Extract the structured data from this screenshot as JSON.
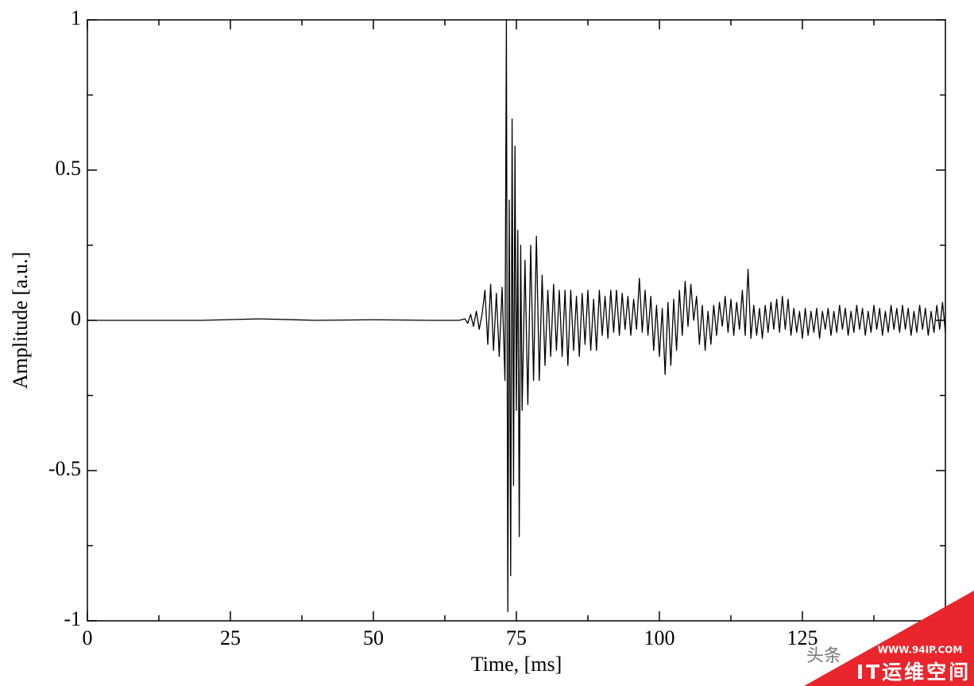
{
  "chart_data": {
    "type": "line",
    "xlabel": "Time, [ms]",
    "ylabel": "Amplitude [a.u.]",
    "color": "#000000",
    "xlim": [
      0,
      150
    ],
    "ylim": [
      -1,
      1
    ],
    "xticks": [
      0,
      25,
      50,
      75,
      100,
      125
    ],
    "yticks": [
      -1,
      -0.5,
      0,
      0.5,
      1
    ],
    "xminorticks": [
      12.5,
      37.5,
      62.5,
      87.5,
      112.5,
      137.5
    ],
    "yminorticks": [
      -0.75,
      -0.25,
      0.25,
      0.75
    ],
    "x": [
      0,
      10,
      20,
      30,
      40,
      50,
      60,
      65,
      66,
      66.5,
      67,
      67.5,
      68,
      68.5,
      69,
      69.5,
      70,
      70.5,
      71,
      71.5,
      72,
      72.5,
      73,
      73.25,
      73.5,
      73.75,
      74,
      74.25,
      74.5,
      74.75,
      75,
      75.25,
      75.5,
      75.75,
      76,
      76.5,
      77,
      77.5,
      78,
      78.5,
      79,
      79.5,
      80,
      80.5,
      81,
      81.5,
      82,
      82.5,
      83,
      83.5,
      84,
      84.5,
      85,
      85.5,
      86,
      86.5,
      87,
      87.5,
      88,
      88.5,
      89,
      89.5,
      90,
      90.5,
      91,
      91.5,
      92,
      92.5,
      93,
      93.5,
      94,
      94.5,
      95,
      95.5,
      96,
      96.5,
      97,
      97.5,
      98,
      98.5,
      99,
      99.5,
      100,
      100.5,
      101,
      101.5,
      102,
      102.5,
      103,
      103.5,
      104,
      104.5,
      105,
      105.5,
      106,
      106.5,
      107,
      107.5,
      108,
      108.5,
      109,
      109.5,
      110,
      110.5,
      111,
      111.5,
      112,
      112.5,
      113,
      113.5,
      114,
      114.5,
      115,
      115.5,
      116,
      116.5,
      117,
      117.5,
      118,
      118.5,
      119,
      119.5,
      120,
      120.5,
      121,
      121.5,
      122,
      122.5,
      123,
      123.5,
      124,
      124.5,
      125,
      125.5,
      126,
      126.5,
      127,
      127.5,
      128,
      128.5,
      129,
      129.5,
      130,
      130.5,
      131,
      131.5,
      132,
      132.5,
      133,
      133.5,
      134,
      134.5,
      135,
      135.5,
      136,
      136.5,
      137,
      137.5,
      138,
      138.5,
      139,
      139.5,
      140,
      140.5,
      141,
      141.5,
      142,
      142.5,
      143,
      143.5,
      144,
      144.5,
      145,
      145.5,
      146,
      146.5,
      147,
      147.5,
      148,
      148.5,
      149,
      149.5,
      150
    ],
    "values": [
      0,
      0,
      0,
      0.005,
      0,
      0.002,
      0,
      0,
      0.005,
      -0.01,
      0.02,
      -0.02,
      0.03,
      -0.03,
      0.02,
      0.1,
      -0.08,
      0.12,
      -0.1,
      0.09,
      -0.12,
      0.11,
      -0.2,
      1,
      -0.97,
      0.4,
      -0.85,
      0.67,
      -0.55,
      0.58,
      -0.3,
      0.3,
      -0.72,
      0.25,
      -0.3,
      0.2,
      -0.28,
      0.25,
      -0.2,
      0.28,
      -0.2,
      0.15,
      -0.15,
      0.1,
      -0.12,
      0.12,
      -0.1,
      0.1,
      -0.12,
      0.1,
      -0.15,
      0.1,
      -0.1,
      0.08,
      -0.12,
      0.09,
      -0.08,
      0.1,
      -0.1,
      0.07,
      -0.1,
      0.1,
      -0.05,
      0.08,
      -0.06,
      0.1,
      -0.04,
      0.1,
      -0.05,
      0.09,
      -0.03,
      0.08,
      -0.05,
      0.07,
      -0.03,
      0.14,
      -0.04,
      0.1,
      -0.05,
      0.08,
      -0.1,
      0.05,
      -0.12,
      0.04,
      -0.18,
      0.06,
      -0.15,
      0.07,
      -0.1,
      0.1,
      -0.05,
      0.13,
      -0.02,
      0.12,
      0,
      0.08,
      -0.08,
      0.05,
      -0.1,
      0.03,
      -0.08,
      0.05,
      -0.05,
      0.06,
      -0.02,
      0.08,
      -0.04,
      0.07,
      -0.05,
      0.06,
      -0.03,
      0.1,
      -0.05,
      0.17,
      -0.06,
      0.05,
      -0.05,
      0.04,
      -0.06,
      0.05,
      -0.04,
      0.06,
      -0.03,
      0.07,
      -0.04,
      0.08,
      -0.03,
      0.07,
      -0.05,
      0.04,
      -0.04,
      0.03,
      -0.06,
      0.04,
      -0.05,
      0.03,
      -0.04,
      0.04,
      -0.06,
      0.03,
      -0.03,
      0.04,
      -0.05,
      0.03,
      -0.04,
      0.05,
      -0.03,
      0.04,
      -0.05,
      0.03,
      -0.04,
      0.05,
      -0.03,
      0.04,
      -0.05,
      0.03,
      -0.04,
      0.05,
      -0.03,
      0.04,
      -0.05,
      0.03,
      -0.04,
      0.05,
      -0.03,
      0.04,
      -0.04,
      0.05,
      -0.03,
      0.04,
      -0.05,
      0.03,
      -0.04,
      0.05,
      -0.03,
      0.04,
      -0.05,
      0.03,
      -0.04,
      0.05,
      -0.03,
      0.06,
      -0.04
    ]
  },
  "watermark": {
    "source": "头条",
    "url": "WWW.94IP.COM",
    "brand": "IT运维空间"
  }
}
